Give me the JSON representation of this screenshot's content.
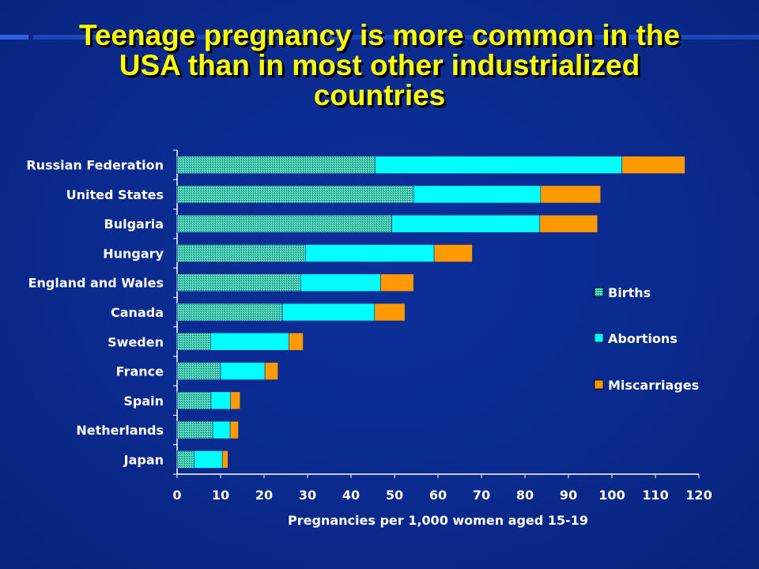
{
  "title_lines": [
    "Teenage pregnancy is more common in the",
    "USA than in most other industrialized",
    "countries"
  ],
  "colors": {
    "background": "#0a2a8e",
    "title": "#ffff00",
    "births": "#2fc2a6",
    "abortions": "#00ffff",
    "miscarriages": "#ff9900",
    "text": "#ffffff"
  },
  "chart_data": {
    "type": "bar",
    "orientation": "horizontal",
    "stacked": true,
    "title": "Teenage pregnancy is more common in the USA than in most other industrialized countries",
    "xlabel": "Pregnancies per 1,000 women aged 15-19",
    "ylabel": "",
    "xlim": [
      0,
      120
    ],
    "xticks": [
      0,
      10,
      20,
      30,
      40,
      50,
      60,
      70,
      80,
      90,
      100,
      110,
      120
    ],
    "grid": false,
    "legend_position": "right",
    "categories": [
      "Russian Federation",
      "United States",
      "Bulgaria",
      "Hungary",
      "England and Wales",
      "Canada",
      "Sweden",
      "France",
      "Spain",
      "Netherlands",
      "Japan"
    ],
    "series": [
      {
        "name": "Births",
        "color": "#2fc2a6",
        "pattern": "dotted",
        "values": [
          45.6,
          54.4,
          49.4,
          29.5,
          28.4,
          24.2,
          7.7,
          10.0,
          7.8,
          8.2,
          3.9
        ]
      },
      {
        "name": "Abortions",
        "color": "#00ffff",
        "values": [
          56.7,
          29.2,
          34.0,
          29.6,
          18.4,
          21.2,
          18.0,
          10.2,
          4.5,
          4.0,
          6.5
        ]
      },
      {
        "name": "Miscarriages",
        "color": "#ff9900",
        "values": [
          14.5,
          13.8,
          13.3,
          8.8,
          7.6,
          7.0,
          3.3,
          3.0,
          2.2,
          1.9,
          1.3
        ]
      }
    ]
  }
}
